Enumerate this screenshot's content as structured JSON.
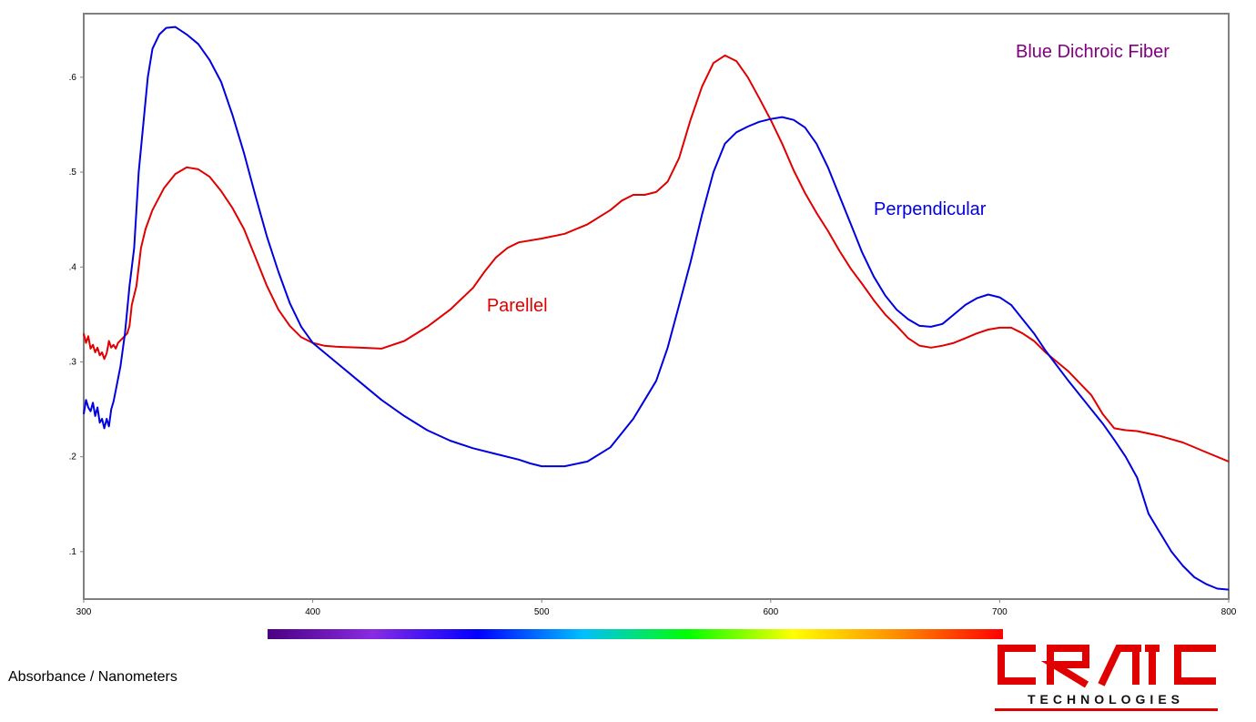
{
  "chart_data": {
    "type": "line",
    "title": "Blue Dichroic Fiber",
    "xlabel": "",
    "ylabel": "Absorbance / Nanometers",
    "xlim": [
      300,
      800
    ],
    "ylim": [
      0.05,
      0.667
    ],
    "x_ticks": [
      "300",
      "400",
      "500",
      "600",
      "700",
      "800"
    ],
    "y_ticks": [
      ".1",
      ".2",
      ".3",
      ".4",
      ".5",
      ".6"
    ],
    "y_tick_values": [
      0.1,
      0.2,
      0.3,
      0.4,
      0.5,
      0.6
    ],
    "grid": false,
    "annotations": [
      {
        "text": "Parellel",
        "color": "#e00000",
        "x": 476,
        "y": 0.353
      },
      {
        "text": "Perpendicular",
        "color": "#0000e0",
        "x": 645,
        "y": 0.455
      },
      {
        "text": "Blue Dichroic Fiber",
        "color": "#800080",
        "x": 707,
        "y": 0.621
      }
    ],
    "series": [
      {
        "name": "Parellel",
        "color": "#e00000",
        "points": [
          [
            300,
            0.33
          ],
          [
            301,
            0.32
          ],
          [
            302,
            0.327
          ],
          [
            303,
            0.314
          ],
          [
            304,
            0.318
          ],
          [
            305,
            0.31
          ],
          [
            306,
            0.315
          ],
          [
            307,
            0.307
          ],
          [
            308,
            0.31
          ],
          [
            309,
            0.303
          ],
          [
            310,
            0.309
          ],
          [
            311,
            0.322
          ],
          [
            312,
            0.315
          ],
          [
            313,
            0.318
          ],
          [
            314,
            0.314
          ],
          [
            315,
            0.32
          ],
          [
            317,
            0.325
          ],
          [
            319,
            0.33
          ],
          [
            320,
            0.338
          ],
          [
            321,
            0.36
          ],
          [
            323,
            0.38
          ],
          [
            325,
            0.42
          ],
          [
            327,
            0.44
          ],
          [
            330,
            0.46
          ],
          [
            335,
            0.483
          ],
          [
            340,
            0.498
          ],
          [
            345,
            0.505
          ],
          [
            350,
            0.503
          ],
          [
            355,
            0.495
          ],
          [
            360,
            0.48
          ],
          [
            365,
            0.462
          ],
          [
            370,
            0.44
          ],
          [
            375,
            0.41
          ],
          [
            380,
            0.38
          ],
          [
            385,
            0.355
          ],
          [
            390,
            0.338
          ],
          [
            395,
            0.326
          ],
          [
            400,
            0.32
          ],
          [
            405,
            0.317
          ],
          [
            410,
            0.316
          ],
          [
            420,
            0.315
          ],
          [
            430,
            0.314
          ],
          [
            440,
            0.322
          ],
          [
            450,
            0.337
          ],
          [
            460,
            0.355
          ],
          [
            470,
            0.378
          ],
          [
            475,
            0.395
          ],
          [
            480,
            0.41
          ],
          [
            485,
            0.42
          ],
          [
            490,
            0.426
          ],
          [
            500,
            0.43
          ],
          [
            510,
            0.435
          ],
          [
            520,
            0.445
          ],
          [
            530,
            0.46
          ],
          [
            535,
            0.47
          ],
          [
            540,
            0.476
          ],
          [
            545,
            0.476
          ],
          [
            550,
            0.479
          ],
          [
            555,
            0.49
          ],
          [
            560,
            0.515
          ],
          [
            565,
            0.555
          ],
          [
            570,
            0.59
          ],
          [
            575,
            0.615
          ],
          [
            580,
            0.623
          ],
          [
            585,
            0.617
          ],
          [
            590,
            0.6
          ],
          [
            595,
            0.578
          ],
          [
            600,
            0.555
          ],
          [
            605,
            0.53
          ],
          [
            610,
            0.502
          ],
          [
            615,
            0.478
          ],
          [
            620,
            0.457
          ],
          [
            625,
            0.438
          ],
          [
            630,
            0.417
          ],
          [
            635,
            0.398
          ],
          [
            640,
            0.382
          ],
          [
            645,
            0.365
          ],
          [
            650,
            0.35
          ],
          [
            655,
            0.338
          ],
          [
            660,
            0.325
          ],
          [
            665,
            0.317
          ],
          [
            670,
            0.315
          ],
          [
            675,
            0.317
          ],
          [
            680,
            0.32
          ],
          [
            685,
            0.325
          ],
          [
            690,
            0.33
          ],
          [
            695,
            0.334
          ],
          [
            700,
            0.336
          ],
          [
            705,
            0.336
          ],
          [
            710,
            0.33
          ],
          [
            715,
            0.322
          ],
          [
            720,
            0.31
          ],
          [
            730,
            0.29
          ],
          [
            740,
            0.265
          ],
          [
            745,
            0.245
          ],
          [
            750,
            0.23
          ],
          [
            755,
            0.228
          ],
          [
            760,
            0.227
          ],
          [
            770,
            0.222
          ],
          [
            780,
            0.215
          ],
          [
            790,
            0.205
          ],
          [
            800,
            0.195
          ]
        ]
      },
      {
        "name": "Perpendicular",
        "color": "#0000e0",
        "points": [
          [
            300,
            0.245
          ],
          [
            301,
            0.26
          ],
          [
            302,
            0.252
          ],
          [
            303,
            0.248
          ],
          [
            304,
            0.257
          ],
          [
            305,
            0.243
          ],
          [
            306,
            0.252
          ],
          [
            307,
            0.236
          ],
          [
            308,
            0.24
          ],
          [
            309,
            0.23
          ],
          [
            310,
            0.24
          ],
          [
            311,
            0.232
          ],
          [
            312,
            0.25
          ],
          [
            313,
            0.258
          ],
          [
            314,
            0.27
          ],
          [
            316,
            0.295
          ],
          [
            318,
            0.33
          ],
          [
            320,
            0.38
          ],
          [
            322,
            0.42
          ],
          [
            324,
            0.5
          ],
          [
            326,
            0.55
          ],
          [
            328,
            0.6
          ],
          [
            330,
            0.63
          ],
          [
            333,
            0.645
          ],
          [
            336,
            0.652
          ],
          [
            340,
            0.653
          ],
          [
            345,
            0.645
          ],
          [
            350,
            0.635
          ],
          [
            355,
            0.618
          ],
          [
            360,
            0.595
          ],
          [
            365,
            0.56
          ],
          [
            370,
            0.52
          ],
          [
            375,
            0.475
          ],
          [
            380,
            0.432
          ],
          [
            385,
            0.395
          ],
          [
            390,
            0.362
          ],
          [
            395,
            0.337
          ],
          [
            400,
            0.32
          ],
          [
            410,
            0.3
          ],
          [
            420,
            0.28
          ],
          [
            430,
            0.26
          ],
          [
            440,
            0.243
          ],
          [
            450,
            0.228
          ],
          [
            460,
            0.217
          ],
          [
            470,
            0.209
          ],
          [
            480,
            0.203
          ],
          [
            490,
            0.197
          ],
          [
            495,
            0.193
          ],
          [
            500,
            0.19
          ],
          [
            510,
            0.19
          ],
          [
            520,
            0.195
          ],
          [
            530,
            0.21
          ],
          [
            540,
            0.24
          ],
          [
            545,
            0.26
          ],
          [
            550,
            0.28
          ],
          [
            555,
            0.315
          ],
          [
            560,
            0.36
          ],
          [
            565,
            0.405
          ],
          [
            570,
            0.455
          ],
          [
            575,
            0.5
          ],
          [
            580,
            0.53
          ],
          [
            585,
            0.542
          ],
          [
            590,
            0.548
          ],
          [
            595,
            0.553
          ],
          [
            600,
            0.556
          ],
          [
            605,
            0.558
          ],
          [
            610,
            0.555
          ],
          [
            615,
            0.547
          ],
          [
            620,
            0.53
          ],
          [
            625,
            0.505
          ],
          [
            630,
            0.475
          ],
          [
            635,
            0.445
          ],
          [
            640,
            0.415
          ],
          [
            645,
            0.39
          ],
          [
            650,
            0.37
          ],
          [
            655,
            0.355
          ],
          [
            660,
            0.345
          ],
          [
            665,
            0.338
          ],
          [
            670,
            0.337
          ],
          [
            675,
            0.34
          ],
          [
            680,
            0.35
          ],
          [
            685,
            0.36
          ],
          [
            690,
            0.367
          ],
          [
            695,
            0.371
          ],
          [
            700,
            0.368
          ],
          [
            705,
            0.36
          ],
          [
            710,
            0.345
          ],
          [
            715,
            0.33
          ],
          [
            720,
            0.312
          ],
          [
            730,
            0.28
          ],
          [
            740,
            0.25
          ],
          [
            745,
            0.235
          ],
          [
            750,
            0.218
          ],
          [
            755,
            0.2
          ],
          [
            760,
            0.178
          ],
          [
            765,
            0.14
          ],
          [
            770,
            0.12
          ],
          [
            775,
            0.1
          ],
          [
            780,
            0.085
          ],
          [
            785,
            0.073
          ],
          [
            790,
            0.066
          ],
          [
            795,
            0.061
          ],
          [
            800,
            0.06
          ]
        ]
      }
    ],
    "spectrum_colors": [
      "#4b0082",
      "#8a2be2",
      "#0000ff",
      "#00bfff",
      "#00ff00",
      "#ffff00",
      "#ff8c00",
      "#ff0000"
    ]
  },
  "footer": {
    "units_label": "Absorbance / Nanometers",
    "logo_text": "CRAIC",
    "logo_subtext": "TECHNOLOGIES",
    "logo_color": "#e00000"
  }
}
